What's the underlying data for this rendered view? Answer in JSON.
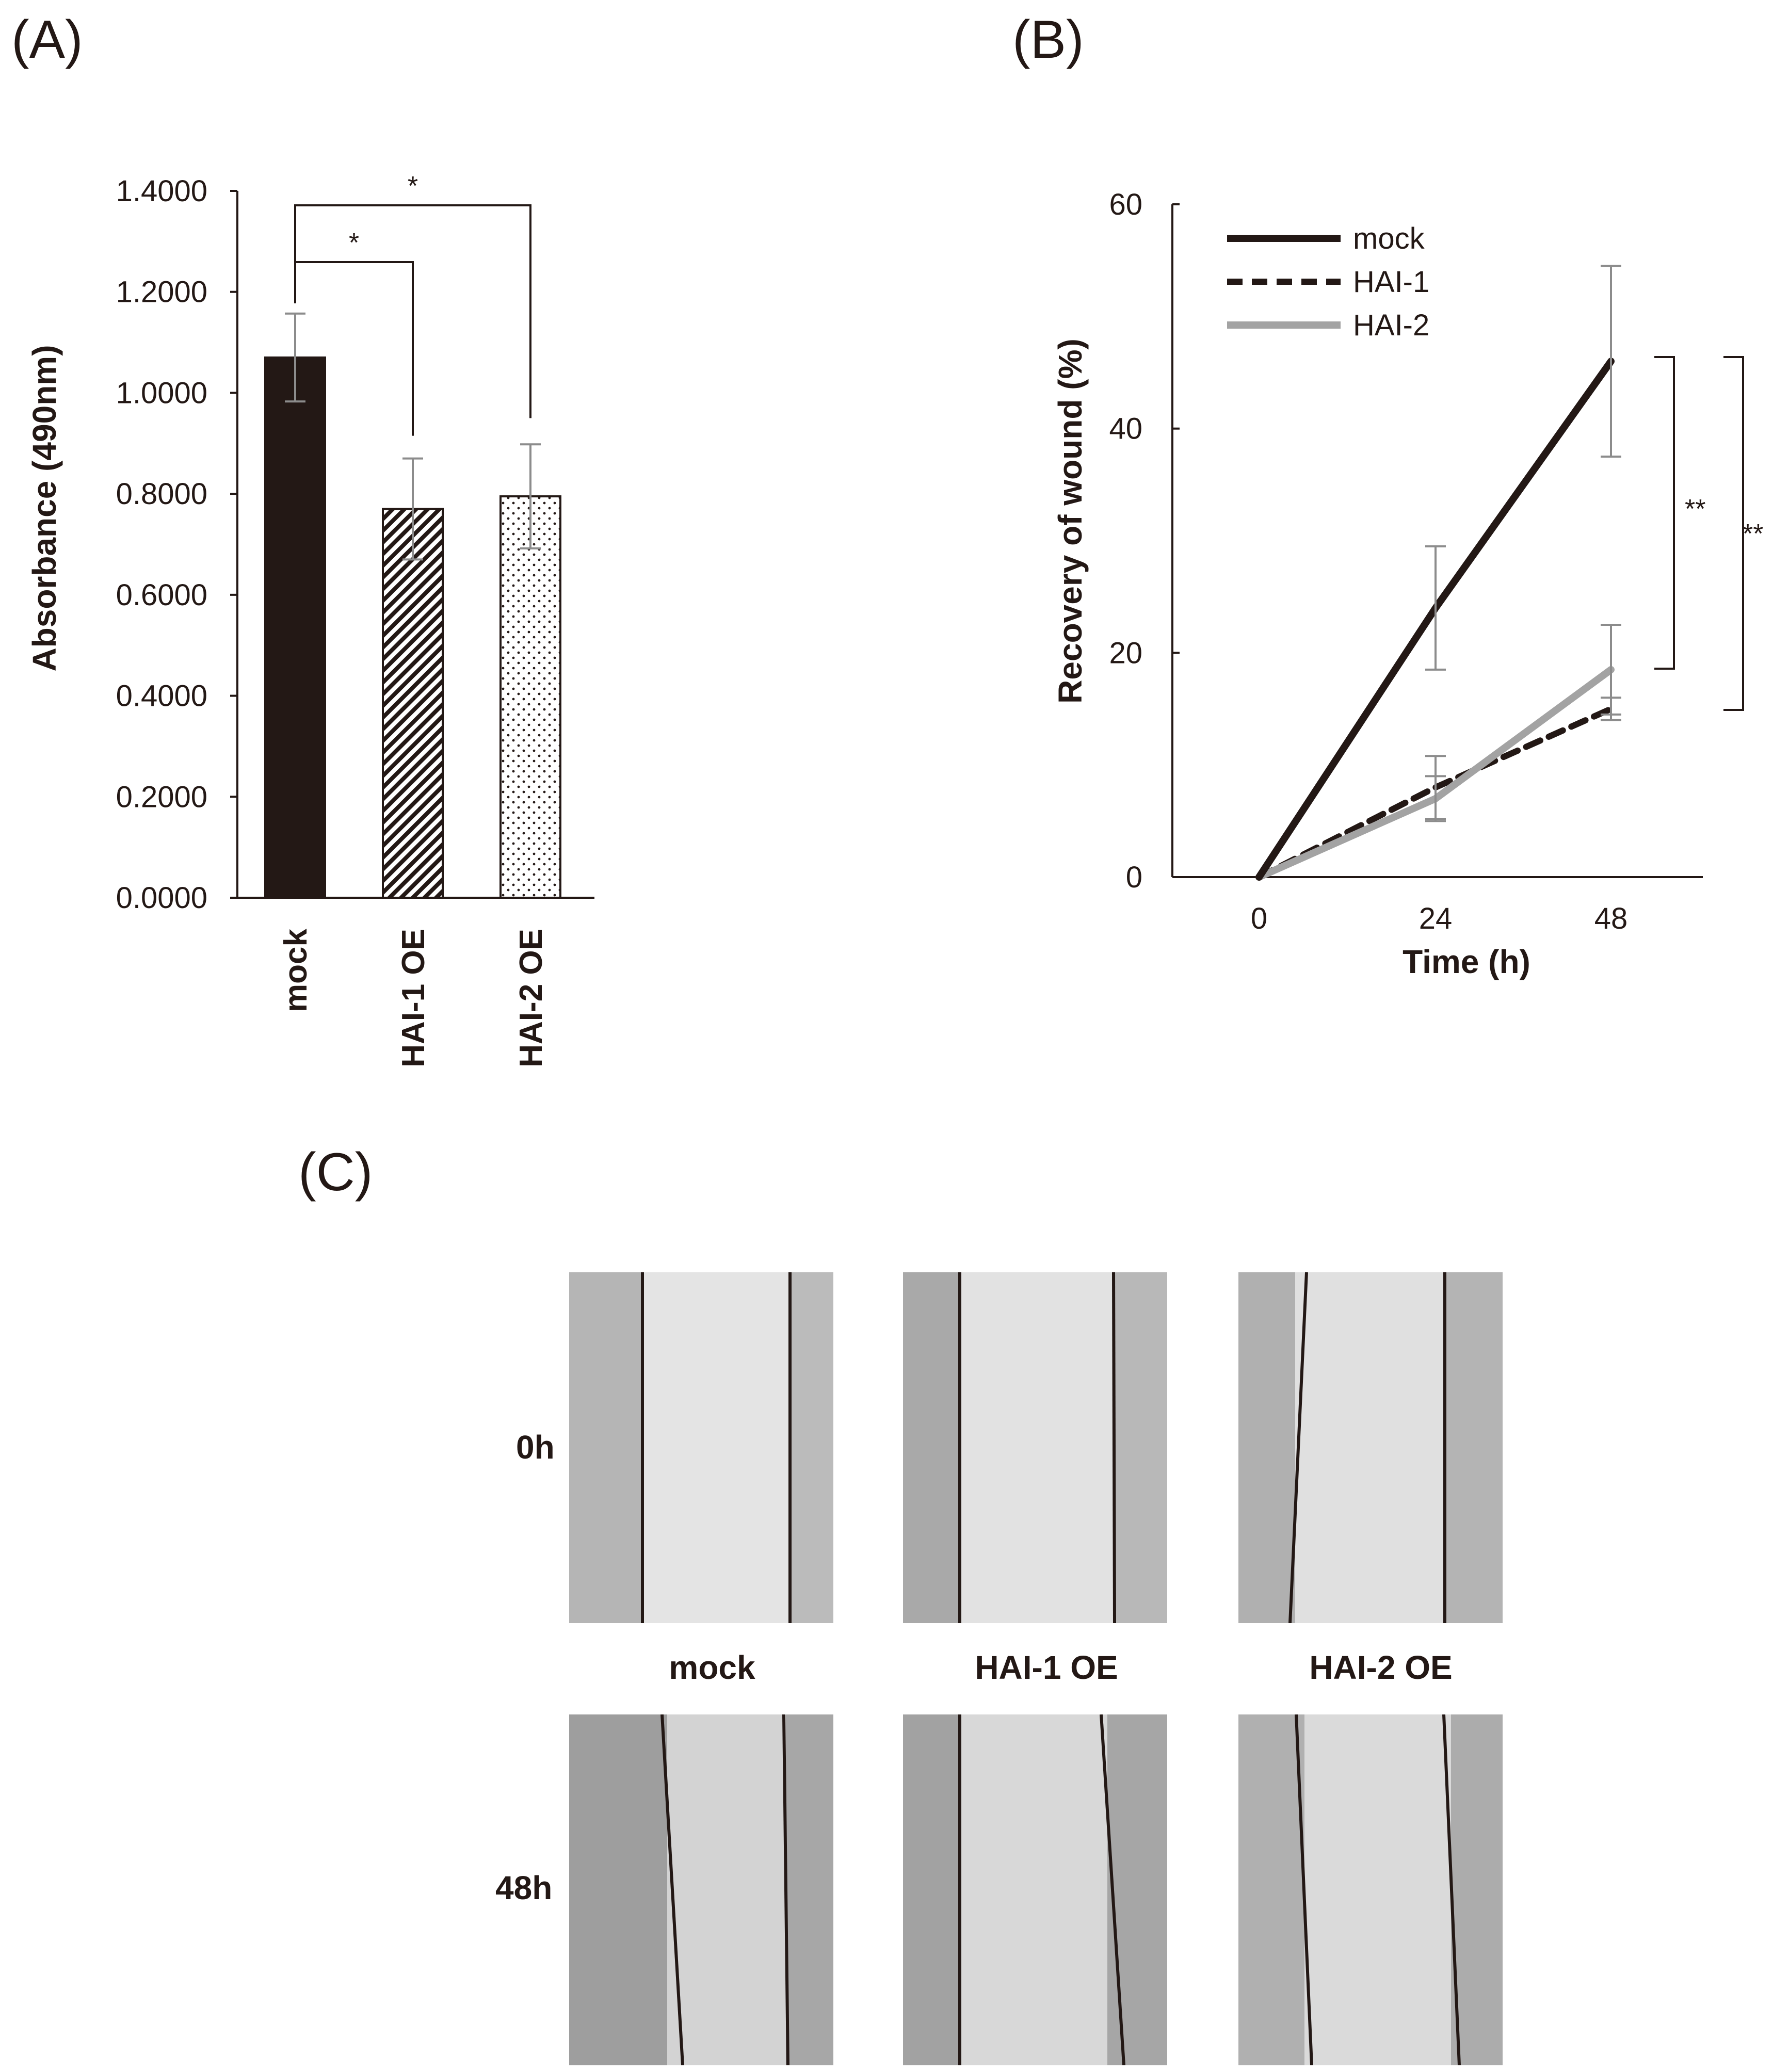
{
  "panels": {
    "a": {
      "label": "(A)",
      "ylabel": "Absorbance (490nm)",
      "sig_marks": [
        "*",
        "*"
      ]
    },
    "b": {
      "label": "(B)",
      "sig_marks": [
        "**",
        "**"
      ]
    },
    "c": {
      "label": "(C)",
      "row_labels": [
        "0h",
        "48h"
      ],
      "col_labels": [
        "mock",
        "HAI-1 OE",
        "HAI-2 OE"
      ]
    }
  },
  "colors": {
    "bar_dark": "#231815",
    "mock_line": "#231815",
    "hai1_line": "#231815",
    "hai2_line": "#a3a3a3",
    "error_bar": "#8c8c8c"
  },
  "chart_data": [
    {
      "type": "bar",
      "title": "(A)",
      "xlabel": "",
      "ylabel": "Absorbance (490nm)",
      "categories": [
        "mock",
        "HAI-1 OE",
        "HAI-2 OE"
      ],
      "values": [
        1.07,
        0.77,
        0.795
      ],
      "errors": [
        0.087,
        0.1,
        0.103
      ],
      "ylim": [
        0,
        1.4
      ],
      "yticks": [
        0,
        0.2,
        0.4,
        0.6,
        0.8,
        1.0,
        1.2,
        1.4
      ],
      "ytick_labels": [
        "0.0000",
        "0.2000",
        "0.4000",
        "0.6000",
        "0.8000",
        "1.0000",
        "1.2000",
        "1.4000"
      ],
      "fills": [
        "solid",
        "diagonal-hatch",
        "dots"
      ],
      "annotations": [
        {
          "from": "mock",
          "to": "HAI-1 OE",
          "text": "*"
        },
        {
          "from": "mock",
          "to": "HAI-2 OE",
          "text": "*"
        }
      ]
    },
    {
      "type": "line",
      "title": "(B)",
      "xlabel": "Time (h)",
      "ylabel": "Recovery of wound (%)",
      "x": [
        0,
        24,
        48
      ],
      "xticks": [
        0,
        24,
        48
      ],
      "xtick_labels": [
        "0",
        "24",
        "48"
      ],
      "ylim": [
        0,
        60
      ],
      "yticks": [
        0,
        20,
        40,
        60
      ],
      "ytick_labels": [
        "0",
        "20",
        "40",
        "60"
      ],
      "legend_position": "top-left",
      "series": [
        {
          "name": "mock",
          "style": "solid",
          "values": [
            0,
            24,
            46
          ],
          "errors": [
            0,
            5.5,
            8.5
          ]
        },
        {
          "name": "HAI-1",
          "style": "dashed",
          "values": [
            0,
            8,
            15
          ],
          "errors": [
            0,
            2.8,
            1
          ]
        },
        {
          "name": "HAI-2",
          "style": "gray",
          "values": [
            0,
            7,
            18.5
          ],
          "errors": [
            0,
            2,
            4
          ]
        }
      ],
      "annotations": [
        {
          "between": [
            "mock",
            "HAI-2"
          ],
          "x": 48,
          "text": "**"
        },
        {
          "between": [
            "mock",
            "HAI-1"
          ],
          "x": 48,
          "text": "**"
        }
      ]
    }
  ]
}
